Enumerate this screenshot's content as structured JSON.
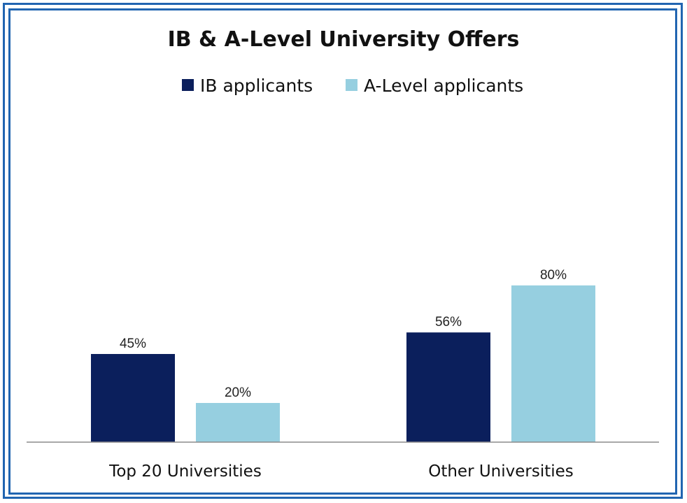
{
  "chart_data": {
    "type": "bar",
    "title": "IB & A-Level University Offers",
    "categories": [
      "Top 20 Universities",
      "Other Universities"
    ],
    "series": [
      {
        "name": "IB applicants",
        "values": [
          45,
          56
        ],
        "labels": [
          "45%",
          "56%"
        ],
        "color": "#0b1f5c"
      },
      {
        "name": "A-Level applicants",
        "values": [
          20,
          80
        ],
        "labels": [
          "20%",
          "80%"
        ],
        "color": "#96cfe0"
      }
    ],
    "ylim": [
      0,
      100
    ],
    "grid": false,
    "legend": "top-center",
    "frame_color": "#2165b1"
  }
}
